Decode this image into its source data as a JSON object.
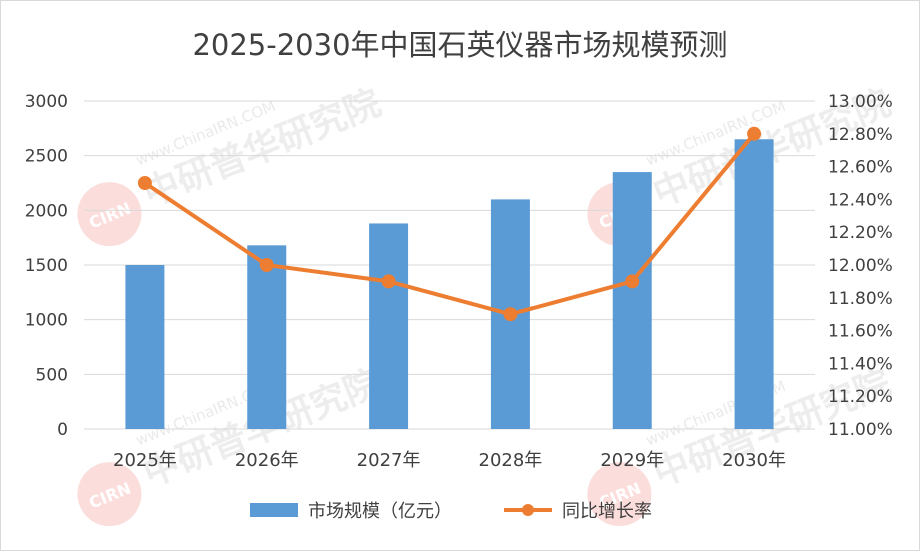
{
  "chart_data": {
    "type": "bar",
    "title": "2025-2030年中国石英仪器市场规模预测",
    "categories": [
      "2025年",
      "2026年",
      "2027年",
      "2028年",
      "2029年",
      "2030年"
    ],
    "series": [
      {
        "name": "市场规模（亿元）",
        "type": "bar",
        "axis": "left",
        "color": "#5B9BD5",
        "values": [
          1500,
          1680,
          1880,
          2100,
          2350,
          2650
        ]
      },
      {
        "name": "同比增长率",
        "type": "line",
        "axis": "right",
        "color": "#ED7D31",
        "values": [
          12.5,
          12.0,
          11.9,
          11.7,
          11.9,
          12.8
        ]
      }
    ],
    "left_axis": {
      "min": 0,
      "max": 3000,
      "step": 500,
      "tick_labels": [
        "0",
        "500",
        "1000",
        "1500",
        "2000",
        "2500",
        "3000"
      ]
    },
    "right_axis": {
      "min": 11.0,
      "max": 13.0,
      "step": 0.2,
      "tick_labels": [
        "11.00%",
        "11.20%",
        "11.40%",
        "11.60%",
        "11.80%",
        "12.00%",
        "12.20%",
        "12.40%",
        "12.60%",
        "12.80%",
        "13.00%"
      ]
    },
    "grid": true,
    "legend_position": "bottom"
  },
  "watermark": {
    "text": "中研普华研究院",
    "subtext": "www.ChinaIRN.COM",
    "logo": "CIRN"
  }
}
